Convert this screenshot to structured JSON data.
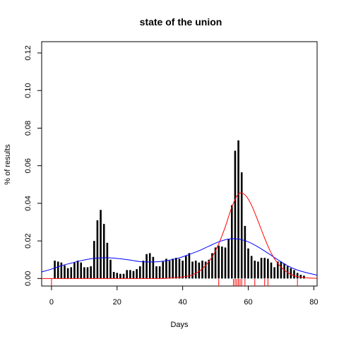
{
  "chart_data": {
    "type": "bar",
    "title": "state of the union",
    "xlabel": "Days",
    "ylabel": "% of results",
    "xlim": [
      -3,
      81
    ],
    "ylim": [
      -0.004,
      0.126
    ],
    "xticks": [
      0,
      20,
      40,
      60,
      80
    ],
    "yticks": [
      0.0,
      0.02,
      0.04,
      0.06,
      0.08,
      0.1,
      0.12
    ],
    "ytick_labels": [
      "0.00",
      "0.02",
      "0.04",
      "0.06",
      "0.08",
      "0.10",
      "0.12"
    ],
    "grid": false,
    "bars": {
      "color": "#000000",
      "x": [
        1,
        2,
        3,
        4,
        5,
        6,
        7,
        8,
        9,
        10,
        11,
        12,
        13,
        14,
        15,
        16,
        17,
        18,
        19,
        20,
        21,
        22,
        23,
        24,
        25,
        26,
        27,
        28,
        29,
        30,
        31,
        32,
        33,
        34,
        35,
        36,
        37,
        38,
        39,
        40,
        41,
        42,
        43,
        44,
        45,
        46,
        47,
        48,
        49,
        50,
        51,
        52,
        53,
        54,
        55,
        56,
        57,
        58,
        59,
        60,
        61,
        62,
        63,
        64,
        65,
        66,
        67,
        68,
        69,
        70,
        71,
        72,
        73,
        74,
        75,
        76,
        77
      ],
      "values": [
        0.0095,
        0.009,
        0.0085,
        0.007,
        0.0055,
        0.006,
        0.0085,
        0.0095,
        0.0085,
        0.006,
        0.006,
        0.0065,
        0.02,
        0.031,
        0.0365,
        0.029,
        0.019,
        0.01,
        0.0035,
        0.003,
        0.0025,
        0.0025,
        0.0045,
        0.0045,
        0.004,
        0.005,
        0.0065,
        0.0095,
        0.013,
        0.0135,
        0.0115,
        0.0065,
        0.0065,
        0.009,
        0.0105,
        0.0095,
        0.0105,
        0.011,
        0.0105,
        0.0095,
        0.012,
        0.0135,
        0.009,
        0.0095,
        0.0085,
        0.0095,
        0.009,
        0.01,
        0.0135,
        0.0165,
        0.0175,
        0.017,
        0.0165,
        0.021,
        0.039,
        0.068,
        0.0735,
        0.0565,
        0.028,
        0.016,
        0.012,
        0.0095,
        0.009,
        0.011,
        0.011,
        0.0105,
        0.0085,
        0.006,
        0.009,
        0.009,
        0.008,
        0.0065,
        0.0055,
        0.0045,
        0.003,
        0.002,
        0.0015
      ]
    },
    "series": [
      {
        "color": "#0000ff",
        "x": [
          -3,
          0,
          3,
          6,
          9,
          12,
          15,
          18,
          21,
          24,
          27,
          30,
          33,
          36,
          39,
          42,
          45,
          48,
          51,
          54,
          57,
          60,
          63,
          66,
          69,
          72,
          75,
          78,
          81
        ],
        "values": [
          0.0035,
          0.005,
          0.0068,
          0.0082,
          0.0095,
          0.0105,
          0.011,
          0.011,
          0.0105,
          0.0098,
          0.009,
          0.0088,
          0.009,
          0.0098,
          0.011,
          0.0128,
          0.0148,
          0.0172,
          0.0195,
          0.021,
          0.021,
          0.0195,
          0.0168,
          0.0135,
          0.01,
          0.0068,
          0.0045,
          0.003,
          0.0018
        ]
      },
      {
        "color": "#ff0000",
        "x": [
          -3,
          0,
          10,
          20,
          30,
          35,
          40,
          43,
          46,
          49,
          51,
          53,
          55,
          57,
          59,
          61,
          63,
          65,
          67,
          69,
          71,
          73,
          75,
          78,
          81
        ],
        "values": [
          0.0,
          0.0,
          0.0,
          0.0,
          0.0,
          0.0001,
          0.0008,
          0.002,
          0.0052,
          0.0115,
          0.0185,
          0.0275,
          0.038,
          0.045,
          0.0445,
          0.039,
          0.0305,
          0.0215,
          0.0135,
          0.008,
          0.0045,
          0.0022,
          0.001,
          0.0003,
          0.0001
        ]
      }
    ],
    "rug": {
      "color": "#ff0000",
      "x": [
        0,
        51,
        55.5,
        56,
        56.5,
        57,
        57.5,
        58,
        59,
        62,
        65,
        66,
        75
      ]
    }
  }
}
